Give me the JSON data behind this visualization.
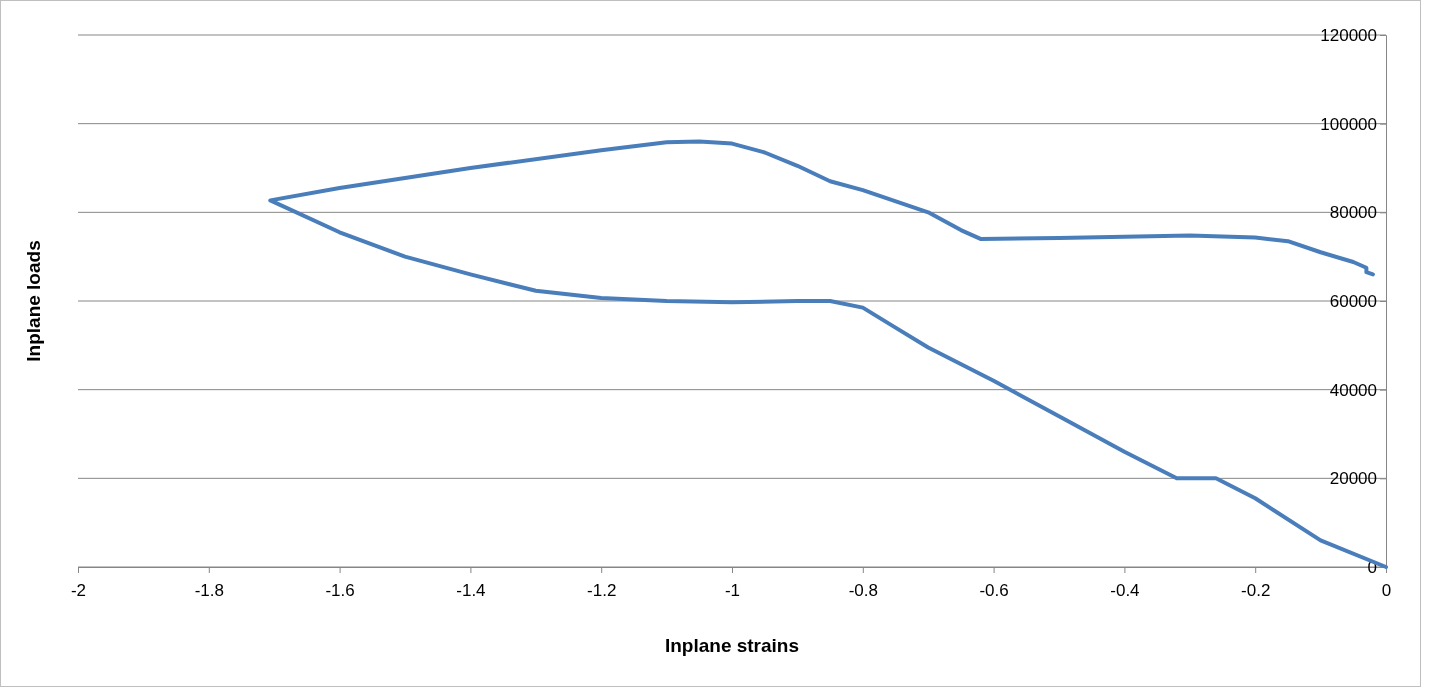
{
  "chart_data": {
    "type": "line",
    "xlabel": "Inplane strains",
    "ylabel": "Inplane loads",
    "xlim": [
      -2,
      0
    ],
    "xticks": [
      -2,
      -1.8,
      -1.6,
      -1.4,
      -1.2,
      -1,
      -0.8,
      -0.6,
      -0.4,
      -0.2,
      0
    ],
    "ylim": [
      0,
      120000
    ],
    "yticks": [
      0,
      20000,
      40000,
      60000,
      80000,
      100000,
      120000
    ],
    "grid": "y",
    "line_style": "solid",
    "series": [
      {
        "color": "#4a7ebb",
        "x": [
          0,
          -0.1,
          -0.2,
          -0.26,
          -0.32,
          -0.4,
          -0.5,
          -0.6,
          -0.7,
          -0.75,
          -0.8,
          -0.85,
          -0.9,
          -1.0,
          -1.1,
          -1.2,
          -1.3,
          -1.4,
          -1.5,
          -1.6,
          -1.706,
          -1.6,
          -1.4,
          -1.2,
          -1.1,
          -1.05,
          -1.0,
          -0.95,
          -0.9,
          -0.85,
          -0.8,
          -0.7,
          -0.65,
          -0.62,
          -0.5,
          -0.4,
          -0.3,
          -0.2,
          -0.15,
          -0.1,
          -0.05,
          -0.03,
          -0.03,
          -0.02
        ],
        "values": [
          0,
          6000,
          15500,
          20000,
          20000,
          26000,
          34000,
          42000,
          49500,
          54000,
          58500,
          60000,
          60000,
          59700,
          60000,
          60700,
          62300,
          66000,
          70000,
          75500,
          82700,
          85500,
          90000,
          94000,
          95800,
          96000,
          95500,
          93500,
          90500,
          87000,
          85000,
          80000,
          76000,
          74000,
          74200,
          74500,
          74800,
          74300,
          73500,
          71000,
          68800,
          67500,
          66500,
          66000
        ]
      }
    ]
  }
}
